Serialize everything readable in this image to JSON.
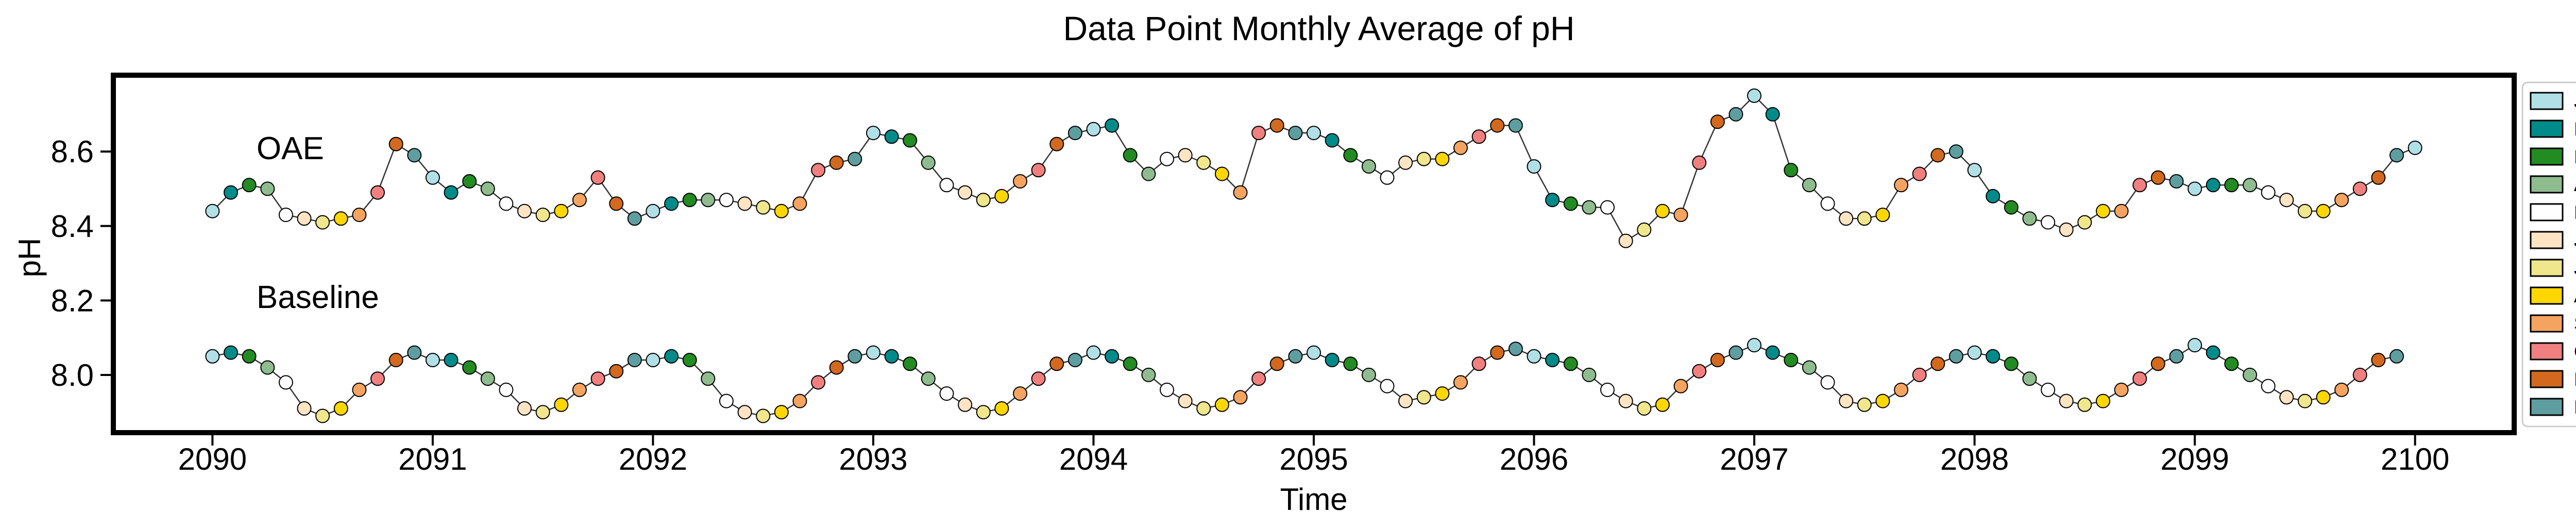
{
  "chart_data": {
    "type": "scatter",
    "title": "Data Point Monthly Average of pH",
    "xlabel": "Time",
    "ylabel": "pH",
    "xlim": [
      2089.55,
      2100.45
    ],
    "ylim": [
      7.845,
      8.805
    ],
    "x_ticks": [
      2090,
      2091,
      2092,
      2093,
      2094,
      2095,
      2096,
      2097,
      2098,
      2099,
      2100
    ],
    "y_ticks": [
      8.0,
      8.2,
      8.4,
      8.6
    ],
    "y_tick_labels": [
      "8.0",
      "8.2",
      "8.4",
      "8.6"
    ],
    "grid": false,
    "legend_placement": "right, outside plot",
    "annotations": [
      {
        "text": "OAE",
        "x": 2090.2,
        "y": 8.61
      },
      {
        "text": "Baseline",
        "x": 2090.2,
        "y": 8.21
      }
    ],
    "months": [
      {
        "label": "Jan",
        "color": "#b0e0e6"
      },
      {
        "label": "Feb",
        "color": "#008b8b"
      },
      {
        "label": "Mar",
        "color": "#228b22"
      },
      {
        "label": "Apr",
        "color": "#8fbc8f"
      },
      {
        "label": "May",
        "color": "#ffffff"
      },
      {
        "label": "June",
        "color": "#ffe4c4"
      },
      {
        "label": "July",
        "color": "#f0e68c"
      },
      {
        "label": "Aug",
        "color": "#ffd700"
      },
      {
        "label": "Sept",
        "color": "#f4a460"
      },
      {
        "label": "Oct",
        "color": "#f08080"
      },
      {
        "label": "Nov",
        "color": "#d2691e"
      },
      {
        "label": "Dec",
        "color": "#5f9ea0"
      }
    ],
    "start_year": 2090,
    "series": [
      {
        "name": "OAE",
        "values": [
          8.44,
          8.49,
          8.51,
          8.5,
          8.43,
          8.42,
          8.41,
          8.42,
          8.43,
          8.49,
          8.62,
          8.59,
          8.53,
          8.49,
          8.52,
          8.5,
          8.46,
          8.44,
          8.43,
          8.44,
          8.47,
          8.53,
          8.46,
          8.42,
          8.44,
          8.46,
          8.47,
          8.47,
          8.47,
          8.46,
          8.45,
          8.44,
          8.46,
          8.55,
          8.57,
          8.58,
          8.65,
          8.64,
          8.63,
          8.57,
          8.51,
          8.49,
          8.47,
          8.48,
          8.52,
          8.55,
          8.62,
          8.65,
          8.66,
          8.67,
          8.59,
          8.54,
          8.58,
          8.59,
          8.57,
          8.54,
          8.49,
          8.65,
          8.67,
          8.65,
          8.65,
          8.63,
          8.59,
          8.56,
          8.53,
          8.57,
          8.58,
          8.58,
          8.61,
          8.64,
          8.67,
          8.67,
          8.56,
          8.47,
          8.46,
          8.45,
          8.45,
          8.36,
          8.39,
          8.44,
          8.43,
          8.57,
          8.68,
          8.7,
          8.75,
          8.7,
          8.55,
          8.51,
          8.46,
          8.42,
          8.42,
          8.43,
          8.51,
          8.54,
          8.59,
          8.6,
          8.55,
          8.48,
          8.45,
          8.42,
          8.41,
          8.39,
          8.41,
          8.44,
          8.44,
          8.51,
          8.53,
          8.52,
          8.5,
          8.51,
          8.51,
          8.51,
          8.49,
          8.47,
          8.44,
          8.44,
          8.47,
          8.5,
          8.53,
          8.59,
          8.61
        ]
      },
      {
        "name": "Baseline",
        "values": [
          8.05,
          8.06,
          8.05,
          8.02,
          7.98,
          7.91,
          7.89,
          7.91,
          7.96,
          7.99,
          8.04,
          8.06,
          8.04,
          8.04,
          8.02,
          7.99,
          7.96,
          7.91,
          7.9,
          7.92,
          7.96,
          7.99,
          8.01,
          8.04,
          8.04,
          8.05,
          8.04,
          7.99,
          7.93,
          7.9,
          7.89,
          7.9,
          7.93,
          7.98,
          8.02,
          8.05,
          8.06,
          8.05,
          8.03,
          7.99,
          7.95,
          7.92,
          7.9,
          7.91,
          7.95,
          7.99,
          8.03,
          8.04,
          8.06,
          8.05,
          8.03,
          8.0,
          7.96,
          7.93,
          7.91,
          7.92,
          7.94,
          7.99,
          8.03,
          8.05,
          8.06,
          8.04,
          8.03,
          8.0,
          7.97,
          7.93,
          7.94,
          7.95,
          7.98,
          8.03,
          8.06,
          8.07,
          8.05,
          8.04,
          8.03,
          8.0,
          7.96,
          7.93,
          7.91,
          7.92,
          7.97,
          8.01,
          8.04,
          8.06,
          8.08,
          8.06,
          8.04,
          8.02,
          7.98,
          7.93,
          7.92,
          7.93,
          7.96,
          8.0,
          8.03,
          8.05,
          8.06,
          8.05,
          8.03,
          7.99,
          7.96,
          7.93,
          7.92,
          7.93,
          7.96,
          7.99,
          8.03,
          8.05,
          8.08,
          8.06,
          8.03,
          8.0,
          7.97,
          7.94,
          7.93,
          7.94,
          7.96,
          8.0,
          8.04,
          8.05
        ]
      }
    ]
  }
}
